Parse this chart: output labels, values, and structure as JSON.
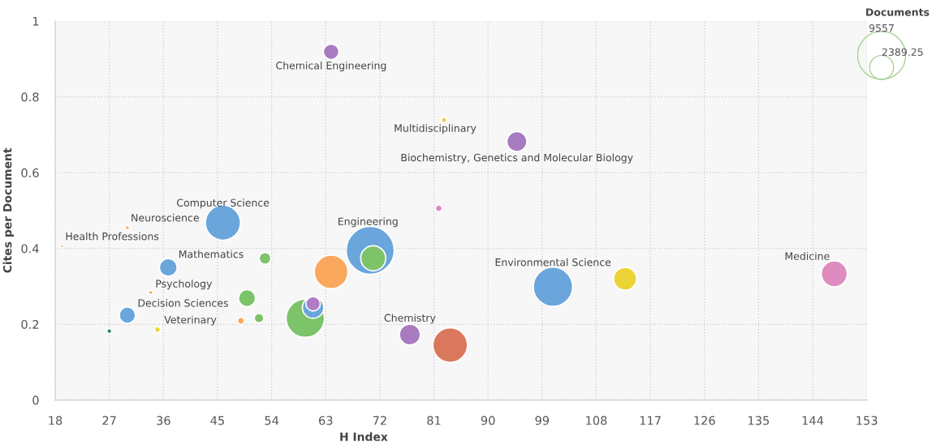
{
  "chart_data": {
    "type": "bubble",
    "xlabel": "H Index",
    "ylabel": "Cites per Document",
    "legend_title": "Documents",
    "x": [
      70.4,
      70.9,
      59.6,
      60.9,
      60.9,
      100.8,
      45.9,
      83.7,
      63.9,
      112.8,
      147.6,
      77,
      94.8,
      63.9,
      36.8,
      49.9,
      30,
      52.9,
      51.9,
      48.9,
      81.8,
      35,
      82.7,
      27,
      33.9,
      30,
      19.1
    ],
    "values": [
      0.395,
      0.374,
      0.216,
      0.244,
      0.254,
      0.299,
      0.468,
      0.145,
      0.338,
      0.32,
      0.333,
      0.173,
      0.682,
      0.919,
      0.35,
      0.269,
      0.224,
      0.374,
      0.216,
      0.209,
      0.506,
      0.186,
      0.739,
      0.182,
      0.284,
      0.455,
      0.406
    ],
    "sizes": [
      9557,
      2600,
      6100,
      1900,
      860,
      6400,
      5100,
      4950,
      4700,
      2200,
      2800,
      1800,
      1650,
      1000,
      1320,
      1200,
      1100,
      570,
      380,
      200,
      200,
      150,
      120,
      100,
      70,
      70,
      40
    ],
    "colors": [
      "#6aa6dc",
      "#7cc36a",
      "#7cc36a",
      "#6aa6dc",
      "#b07cc6",
      "#6aa6dc",
      "#6aa6dc",
      "#d9785c",
      "#f9a85e",
      "#ecd437",
      "#de8cc0",
      "#a87bc0",
      "#a87bc0",
      "#a87bc0",
      "#6aa6dc",
      "#7cc36a",
      "#6aa6dc",
      "#7cc36a",
      "#7cc36a",
      "#f9a85e",
      "#de8cc0",
      "#ecd437",
      "#ecd437",
      "#2e8b57",
      "#f9a85e",
      "#f9a85e",
      "#f9a85e"
    ],
    "size_legend": [
      9557,
      2389.25
    ],
    "xlim": [
      18,
      153
    ],
    "ylim": [
      0,
      1
    ],
    "xticks": [
      18,
      27,
      36,
      45,
      54,
      63,
      72,
      81,
      90,
      99,
      108,
      117,
      126,
      135,
      144,
      153
    ],
    "yticks": [
      0,
      0.2,
      0.4,
      0.6,
      0.8,
      1
    ],
    "grid": true,
    "annotations": [
      {
        "text": "Chemical Engineering",
        "x": 63.9,
        "y": 0.919
      },
      {
        "text": "Multidisciplinary",
        "x": 82.7,
        "y": 0.739
      },
      {
        "text": "Biochemistry, Genetics and Molecular Biology",
        "x": 94.8,
        "y": 0.682
      },
      {
        "text": "Computer Science",
        "x": 45.9,
        "y": 0.468
      },
      {
        "text": "Neuroscience",
        "x": 30,
        "y": 0.455
      },
      {
        "text": "Health Professions",
        "x": 19.1,
        "y": 0.406
      },
      {
        "text": "Engineering",
        "x": 70.4,
        "y": 0.395
      },
      {
        "text": "Mathematics",
        "x": 36.8,
        "y": 0.35
      },
      {
        "text": "Psychology",
        "x": 33.9,
        "y": 0.284
      },
      {
        "text": "Decision Sciences",
        "x": 30,
        "y": 0.224
      },
      {
        "text": "Veterinary",
        "x": 35,
        "y": 0.186
      },
      {
        "text": "Chemistry",
        "x": 77,
        "y": 0.173
      },
      {
        "text": "Environmental Science",
        "x": 100.8,
        "y": 0.299
      },
      {
        "text": "Medicine",
        "x": 147.6,
        "y": 0.333
      }
    ]
  }
}
